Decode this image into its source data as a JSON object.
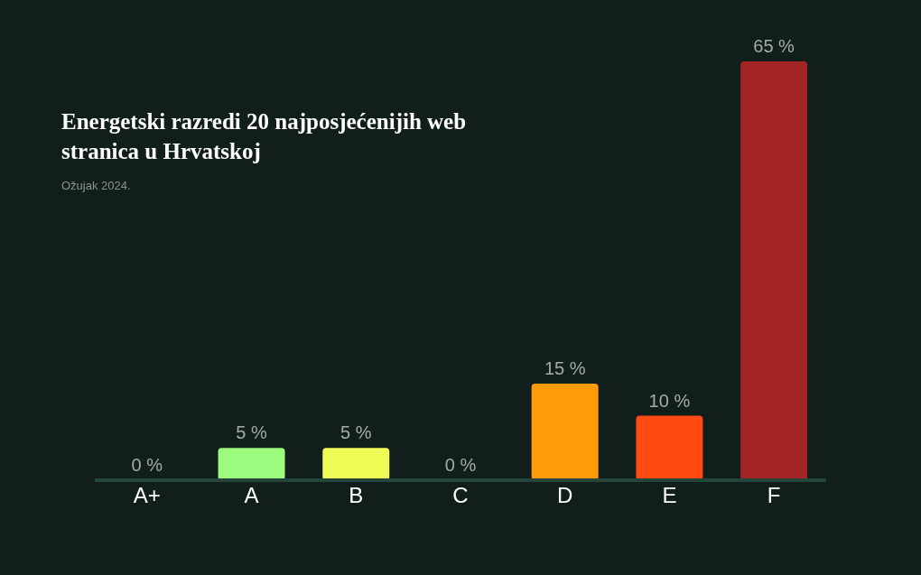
{
  "chart_data": {
    "type": "bar",
    "title": "Energetski razredi 20 najposjećenijih web stranica u Hrvatskoj",
    "subtitle": "Ožujak 2024.",
    "categories": [
      "A+",
      "A",
      "B",
      "C",
      "D",
      "E",
      "F"
    ],
    "values": [
      0,
      5,
      5,
      0,
      15,
      10,
      65
    ],
    "colors": [
      "#3ec96a",
      "#9dfc7f",
      "#eefc55",
      "#ffd21f",
      "#ff9a0a",
      "#ff4a12",
      "#a32424"
    ],
    "value_labels": [
      "0 %",
      "5 %",
      "5 %",
      "0 %",
      "15 %",
      "10 %",
      "65 %"
    ],
    "grid": false,
    "legend": false
  }
}
